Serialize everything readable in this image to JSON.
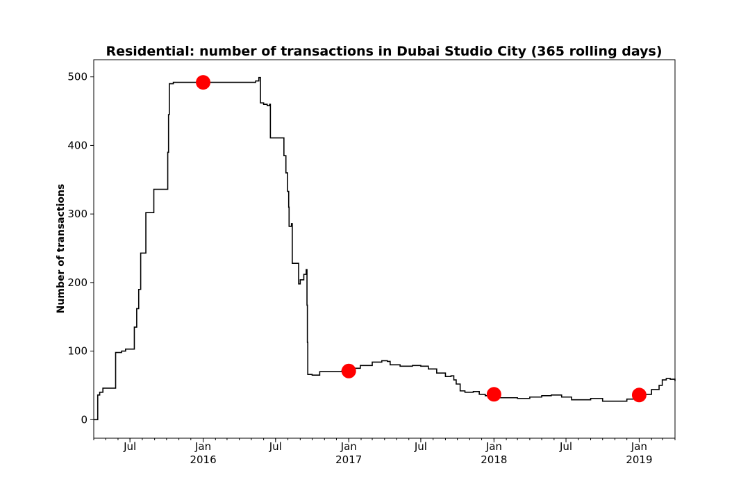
{
  "chart_data": {
    "type": "line",
    "title": "Residential: number of transactions in Dubai Studio City (365 rolling days)",
    "xlabel": "",
    "ylabel": "Number of transactions",
    "xlim": [
      "2015-04-01",
      "2019-04-01"
    ],
    "ylim": [
      -27,
      525
    ],
    "grid": false,
    "y_ticks": [
      0,
      100,
      200,
      300,
      400,
      500
    ],
    "x_ticks": [
      {
        "date": "2015-07-01",
        "label": "Jul",
        "sublabel": ""
      },
      {
        "date": "2016-01-01",
        "label": "Jan",
        "sublabel": "2016"
      },
      {
        "date": "2016-07-01",
        "label": "Jul",
        "sublabel": ""
      },
      {
        "date": "2017-01-01",
        "label": "Jan",
        "sublabel": "2017"
      },
      {
        "date": "2017-07-01",
        "label": "Jul",
        "sublabel": ""
      },
      {
        "date": "2018-01-01",
        "label": "Jan",
        "sublabel": "2018"
      },
      {
        "date": "2018-07-01",
        "label": "Jul",
        "sublabel": ""
      },
      {
        "date": "2019-01-01",
        "label": "Jan",
        "sublabel": "2019"
      }
    ],
    "series": [
      {
        "color": "#000000",
        "step": true,
        "points": [
          [
            "2015-04-01",
            0
          ],
          [
            "2015-04-10",
            0
          ],
          [
            "2015-04-11",
            36
          ],
          [
            "2015-04-16",
            40
          ],
          [
            "2015-04-24",
            46
          ],
          [
            "2015-05-25",
            46
          ],
          [
            "2015-05-26",
            98
          ],
          [
            "2015-06-10",
            100
          ],
          [
            "2015-06-20",
            103
          ],
          [
            "2015-07-10",
            103
          ],
          [
            "2015-07-12",
            135
          ],
          [
            "2015-07-18",
            162
          ],
          [
            "2015-07-23",
            190
          ],
          [
            "2015-07-28",
            243
          ],
          [
            "2015-08-08",
            243
          ],
          [
            "2015-08-10",
            302
          ],
          [
            "2015-08-28",
            302
          ],
          [
            "2015-08-30",
            336
          ],
          [
            "2015-10-02",
            336
          ],
          [
            "2015-10-04",
            390
          ],
          [
            "2015-10-06",
            445
          ],
          [
            "2015-10-08",
            490
          ],
          [
            "2015-10-18",
            492
          ],
          [
            "2016-05-12",
            494
          ],
          [
            "2016-05-20",
            499
          ],
          [
            "2016-05-24",
            462
          ],
          [
            "2016-06-01",
            460
          ],
          [
            "2016-06-10",
            458
          ],
          [
            "2016-06-16",
            460
          ],
          [
            "2016-06-18",
            411
          ],
          [
            "2016-07-20",
            411
          ],
          [
            "2016-07-22",
            385
          ],
          [
            "2016-07-27",
            360
          ],
          [
            "2016-07-31",
            333
          ],
          [
            "2016-08-03",
            310
          ],
          [
            "2016-08-04",
            282
          ],
          [
            "2016-08-10",
            286
          ],
          [
            "2016-08-12",
            228
          ],
          [
            "2016-08-26",
            228
          ],
          [
            "2016-08-28",
            198
          ],
          [
            "2016-09-01",
            204
          ],
          [
            "2016-09-10",
            212
          ],
          [
            "2016-09-16",
            219
          ],
          [
            "2016-09-18",
            167
          ],
          [
            "2016-09-19",
            113
          ],
          [
            "2016-09-20",
            66
          ],
          [
            "2016-10-01",
            65
          ],
          [
            "2016-10-20",
            70
          ],
          [
            "2016-12-15",
            72
          ],
          [
            "2016-12-30",
            75
          ],
          [
            "2017-01-30",
            79
          ],
          [
            "2017-03-01",
            84
          ],
          [
            "2017-03-25",
            86
          ],
          [
            "2017-04-08",
            85
          ],
          [
            "2017-04-15",
            80
          ],
          [
            "2017-05-10",
            78
          ],
          [
            "2017-06-10",
            79
          ],
          [
            "2017-07-01",
            78
          ],
          [
            "2017-07-20",
            74
          ],
          [
            "2017-08-10",
            68
          ],
          [
            "2017-09-01",
            63
          ],
          [
            "2017-09-15",
            64
          ],
          [
            "2017-09-22",
            58
          ],
          [
            "2017-09-28",
            52
          ],
          [
            "2017-10-08",
            42
          ],
          [
            "2017-10-20",
            40
          ],
          [
            "2017-11-10",
            41
          ],
          [
            "2017-11-25",
            37
          ],
          [
            "2017-12-10",
            35
          ],
          [
            "2018-01-01",
            36
          ],
          [
            "2018-01-15",
            32
          ],
          [
            "2018-03-01",
            31
          ],
          [
            "2018-04-01",
            33
          ],
          [
            "2018-05-01",
            35
          ],
          [
            "2018-05-25",
            36
          ],
          [
            "2018-06-20",
            33
          ],
          [
            "2018-07-15",
            29
          ],
          [
            "2018-08-15",
            29
          ],
          [
            "2018-09-01",
            31
          ],
          [
            "2018-10-01",
            27
          ],
          [
            "2018-11-15",
            27
          ],
          [
            "2018-12-01",
            30
          ],
          [
            "2019-01-01",
            33
          ],
          [
            "2019-01-15",
            37
          ],
          [
            "2019-02-01",
            44
          ],
          [
            "2019-02-20",
            50
          ],
          [
            "2019-02-28",
            58
          ],
          [
            "2019-03-10",
            60
          ],
          [
            "2019-03-20",
            59
          ],
          [
            "2019-04-01",
            56
          ]
        ]
      }
    ],
    "markers": {
      "color": "#ff0000",
      "points": [
        [
          "2016-01-01",
          492
        ],
        [
          "2017-01-01",
          71
        ],
        [
          "2018-01-01",
          37
        ],
        [
          "2019-01-01",
          36
        ]
      ]
    }
  }
}
